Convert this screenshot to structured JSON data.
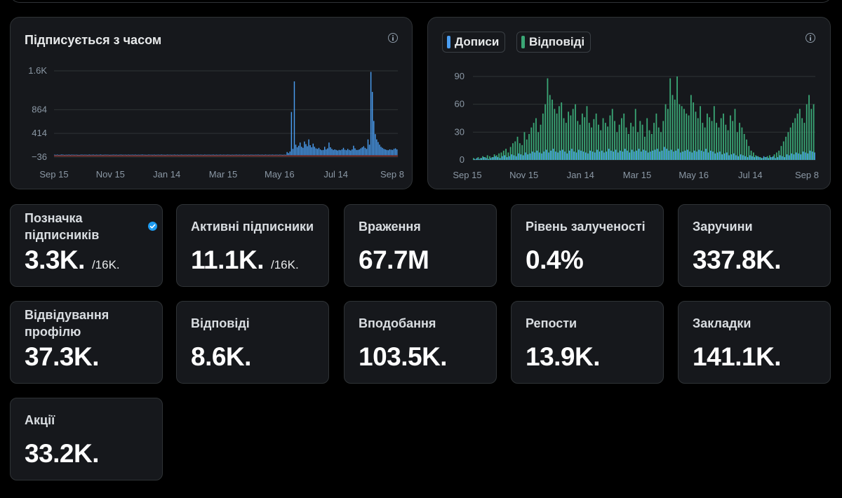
{
  "chart1": {
    "title": "Підписується з часом",
    "chart_data": {
      "type": "bar",
      "title": "Підписується з часом",
      "ytick_labels": [
        "1.6K",
        "864",
        "414",
        "−36"
      ],
      "yticks": [
        1600,
        864,
        414,
        -36
      ],
      "ylim": [
        -36,
        1600
      ],
      "xtick_labels": [
        "Sep 15",
        "Nov 15",
        "Jan 14",
        "Mar 15",
        "May 16",
        "Jul 14",
        "Sep 8"
      ],
      "grid": true,
      "color": "#4a9df0",
      "values": [
        10,
        8,
        12,
        6,
        9,
        14,
        11,
        7,
        10,
        9,
        13,
        8,
        12,
        10,
        9,
        11,
        8,
        7,
        10,
        12,
        9,
        11,
        10,
        8,
        13,
        9,
        10,
        12,
        8,
        11,
        9,
        10,
        14,
        8,
        9,
        12,
        10,
        11,
        8,
        9,
        10,
        12,
        9,
        11,
        8,
        10,
        13,
        9,
        10,
        11,
        8,
        12,
        9,
        10,
        11,
        9,
        12,
        8,
        10,
        9,
        11,
        13,
        10,
        9,
        8,
        12,
        11,
        10,
        9,
        12,
        8,
        10,
        11,
        9,
        13,
        10,
        9,
        8,
        12,
        10,
        11,
        9,
        10,
        12,
        9,
        11,
        8,
        10,
        12,
        9,
        10,
        11,
        9,
        12,
        10,
        8,
        11,
        9,
        10,
        12,
        9,
        11,
        10,
        8,
        12,
        9,
        10,
        11,
        9,
        10,
        12,
        8,
        11,
        9,
        10,
        12,
        9,
        11,
        10,
        9,
        12,
        10,
        8,
        11,
        9,
        10,
        12,
        9,
        11,
        10,
        9,
        12,
        8,
        10,
        11,
        9,
        12,
        10,
        9,
        11,
        10,
        12,
        9,
        10,
        11,
        8,
        12,
        10,
        9,
        11,
        10,
        12,
        9,
        10,
        11,
        9,
        12,
        10,
        8,
        11,
        9,
        60,
        40,
        70,
        820,
        120,
        1400,
        200,
        150,
        180,
        240,
        160,
        140,
        260,
        210,
        170,
        300,
        190,
        150,
        220,
        160,
        130,
        120,
        140,
        110,
        95,
        100,
        160,
        110,
        130,
        240,
        150,
        120,
        100,
        110,
        100,
        90,
        100,
        95,
        110,
        140,
        105,
        95,
        120,
        100,
        90,
        110,
        180,
        130,
        100,
        100,
        110,
        130,
        150,
        170,
        140,
        120,
        300,
        200,
        1580,
        1200,
        650,
        400,
        300,
        250,
        200,
        160,
        140,
        120,
        110,
        100,
        95,
        110,
        105,
        100,
        120,
        130,
        110
      ],
      "red_baseline": true
    }
  },
  "chart2": {
    "legend": [
      {
        "label": "Дописи",
        "color": "#4a9df0"
      },
      {
        "label": "Відповіді",
        "color": "#3aa675"
      }
    ],
    "chart_data": {
      "type": "bar",
      "ytick_labels": [
        "90",
        "60",
        "30",
        "0"
      ],
      "yticks": [
        90,
        60,
        30,
        0
      ],
      "ylim": [
        0,
        90
      ],
      "xtick_labels": [
        "Sep 15",
        "Nov 15",
        "Jan 14",
        "Mar 15",
        "May 16",
        "Jul 14",
        "Sep 8"
      ],
      "grid": true,
      "series": [
        {
          "name": "Дописи",
          "values": [
            1,
            2,
            1,
            2,
            3,
            2,
            1,
            2,
            3,
            4,
            3,
            2,
            4,
            5,
            3,
            4,
            6,
            5,
            4,
            7,
            6,
            5,
            8,
            6,
            7,
            9,
            8,
            10,
            8,
            7,
            9,
            11,
            8,
            10,
            12,
            9,
            8,
            10,
            11,
            9,
            7,
            10,
            12,
            9,
            8,
            11,
            10,
            9,
            8,
            7,
            10,
            9,
            8,
            11,
            9,
            10,
            8,
            9,
            12,
            10,
            9,
            11,
            8,
            10,
            9,
            12,
            10,
            8,
            11,
            9,
            10,
            12,
            9,
            11,
            10,
            8,
            9,
            10,
            11,
            12,
            9,
            10,
            14,
            12,
            10,
            11,
            9,
            10,
            12,
            8,
            9,
            10,
            11,
            9,
            8,
            10,
            9,
            11,
            10,
            9,
            12,
            8,
            10,
            9,
            7,
            8,
            9,
            6,
            7,
            8,
            5,
            6,
            7,
            5,
            4,
            6,
            5,
            4,
            3,
            5,
            4,
            3,
            4,
            3,
            2,
            4,
            3,
            2,
            3,
            4,
            2,
            3,
            5,
            4,
            3,
            6,
            5,
            7,
            6,
            8,
            7,
            6,
            9,
            8,
            7,
            10,
            9,
            8
          ]
        },
        {
          "name": "Відповіді",
          "values": [
            2,
            1,
            3,
            2,
            4,
            3,
            5,
            4,
            3,
            6,
            5,
            7,
            8,
            10,
            12,
            8,
            14,
            18,
            20,
            25,
            18,
            16,
            30,
            22,
            28,
            35,
            40,
            45,
            30,
            38,
            50,
            60,
            88,
            70,
            65,
            55,
            50,
            58,
            62,
            45,
            40,
            52,
            48,
            55,
            60,
            42,
            38,
            50,
            46,
            58,
            40,
            35,
            44,
            50,
            38,
            32,
            45,
            40,
            36,
            48,
            55,
            42,
            30,
            38,
            45,
            50,
            35,
            28,
            40,
            36,
            55,
            30,
            42,
            38,
            25,
            45,
            32,
            28,
            40,
            50,
            35,
            30,
            42,
            60,
            55,
            88,
            70,
            65,
            90,
            60,
            58,
            55,
            50,
            48,
            70,
            62,
            52,
            45,
            58,
            40,
            35,
            50,
            46,
            42,
            58,
            40,
            35,
            45,
            50,
            38,
            32,
            48,
            42,
            55,
            30,
            40,
            35,
            28,
            22,
            15,
            10,
            8,
            5,
            4,
            3,
            2,
            3,
            4,
            5,
            3,
            6,
            8,
            10,
            15,
            20,
            25,
            30,
            35,
            40,
            45,
            50,
            55,
            45,
            40,
            60,
            70,
            55,
            60
          ]
        }
      ]
    }
  },
  "stats": [
    {
      "label": "Позначка підписників",
      "value": "3.3K.",
      "suffix": "/16K.",
      "verified": true
    },
    {
      "label": "Активні підписники",
      "value": "11.1K.",
      "suffix": "/16K."
    },
    {
      "label": "Враження",
      "value": "67.7M"
    },
    {
      "label": "Рівень залученості",
      "value": "0.4%"
    },
    {
      "label": "Заручини",
      "value": "337.8K."
    },
    {
      "label": "Відвідування профілю",
      "value": "37.3K."
    },
    {
      "label": "Відповіді",
      "value": "8.6K."
    },
    {
      "label": "Вподобання",
      "value": "103.5K."
    },
    {
      "label": "Репости",
      "value": "13.9K."
    },
    {
      "label": "Закладки",
      "value": "141.1K."
    },
    {
      "label": "Акції",
      "value": "33.2K."
    }
  ]
}
